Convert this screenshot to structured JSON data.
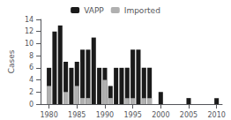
{
  "chart_data": {
    "type": "bar",
    "stacked": true,
    "x": [
      1980,
      1981,
      1982,
      1983,
      1984,
      1985,
      1986,
      1987,
      1988,
      1989,
      1990,
      1991,
      1992,
      1993,
      1994,
      1995,
      1996,
      1997,
      1998,
      1999,
      2000,
      2001,
      2002,
      2003,
      2004,
      2005,
      2006,
      2007,
      2008,
      2009,
      2010
    ],
    "series": [
      {
        "name": "VAPP",
        "color": "#1a1a1a",
        "values": [
          6,
          12,
          13,
          7,
          6,
          7,
          9,
          9,
          11,
          6,
          6,
          3,
          6,
          6,
          6,
          9,
          9,
          6,
          6,
          0,
          2,
          0,
          0,
          0,
          0,
          1,
          0,
          0,
          0,
          0,
          1
        ]
      },
      {
        "name": "Imported",
        "color": "#b0b0b0",
        "values": [
          3,
          0,
          0,
          2,
          0,
          3,
          1,
          1,
          0,
          0,
          4,
          1,
          0,
          0,
          1,
          1,
          0,
          1,
          1,
          0,
          0,
          0,
          0,
          0,
          0,
          0,
          0,
          0,
          0,
          0,
          0
        ]
      }
    ],
    "ylabel": "Cases",
    "xlim": [
      1978.5,
      2011
    ],
    "xticks": [
      1980,
      1985,
      1990,
      1995,
      2000,
      2005,
      2010
    ],
    "ylim": [
      0,
      14
    ],
    "yticks": [
      0,
      2,
      4,
      6,
      8,
      10,
      12,
      14
    ],
    "legend": "top",
    "grid": false
  }
}
